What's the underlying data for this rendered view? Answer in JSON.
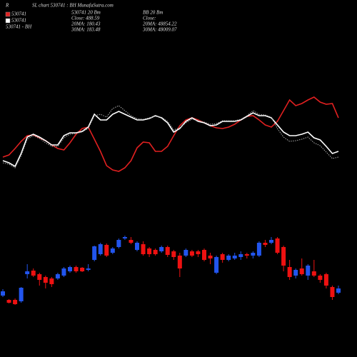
{
  "chart_data": {
    "type": "candlestick",
    "corner": "R",
    "title": "SL chart 530741 : BH MunafaSutra.com",
    "legend": [
      {
        "label": "530741",
        "color": "#e02020"
      },
      {
        "label": "530741",
        "color": "#ffffff"
      },
      {
        "label": "530741 - BH"
      }
    ],
    "info_left": [
      "530741 20 Bm",
      "Close: 488.59",
      "20MA: 180.43",
      "30MA: 183.48"
    ],
    "info_right": [
      "BB 20 Bm",
      "Close:",
      "20MA: 48854.22",
      "30MA: 48009.07"
    ],
    "up_color": "#2255ee",
    "down_color": "#ee1111",
    "ylim": [
      0,
      500
    ],
    "candles": [
      [
        86,
        95,
        84,
        92
      ],
      [
        80,
        81,
        75,
        76
      ],
      [
        80,
        82,
        73,
        74
      ],
      [
        78,
        98,
        76,
        97
      ],
      [
        116,
        130,
        110,
        120
      ],
      [
        121,
        124,
        112,
        114
      ],
      [
        116,
        118,
        100,
        108
      ],
      [
        112,
        114,
        96,
        104
      ],
      [
        110,
        112,
        98,
        102
      ],
      [
        110,
        118,
        108,
        116
      ],
      [
        114,
        126,
        112,
        124
      ],
      [
        120,
        128,
        118,
        126
      ],
      [
        126,
        128,
        118,
        120
      ],
      [
        125,
        126,
        119,
        120
      ],
      [
        122,
        130,
        120,
        124
      ],
      [
        136,
        156,
        134,
        155
      ],
      [
        144,
        160,
        142,
        158
      ],
      [
        157,
        159,
        140,
        142
      ],
      [
        146,
        154,
        144,
        152
      ],
      [
        154,
        166,
        152,
        164
      ],
      [
        166,
        170,
        164,
        168
      ],
      [
        164,
        168,
        158,
        160
      ],
      [
        150,
        162,
        148,
        160
      ],
      [
        158,
        162,
        142,
        144
      ],
      [
        152,
        154,
        140,
        144
      ],
      [
        150,
        152,
        142,
        144
      ],
      [
        148,
        156,
        146,
        154
      ],
      [
        154,
        156,
        140,
        143
      ],
      [
        148,
        150,
        136,
        140
      ],
      [
        142,
        146,
        112,
        124
      ],
      [
        142,
        152,
        140,
        150
      ],
      [
        148,
        150,
        140,
        142
      ],
      [
        148,
        150,
        140,
        144
      ],
      [
        150,
        152,
        134,
        136
      ],
      [
        142,
        146,
        130,
        138
      ],
      [
        118,
        142,
        116,
        140
      ],
      [
        144,
        146,
        132,
        136
      ],
      [
        136,
        144,
        134,
        142
      ],
      [
        138,
        146,
        136,
        142
      ],
      [
        140,
        148,
        136,
        144
      ],
      [
        144,
        146,
        138,
        142
      ],
      [
        142,
        148,
        138,
        146
      ],
      [
        142,
        162,
        140,
        160
      ],
      [
        160,
        164,
        154,
        157
      ],
      [
        160,
        168,
        158,
        164
      ],
      [
        166,
        168,
        144,
        146
      ],
      [
        154,
        156,
        120,
        128
      ],
      [
        126,
        136,
        108,
        112
      ],
      [
        114,
        124,
        110,
        122
      ],
      [
        124,
        138,
        114,
        116
      ],
      [
        114,
        130,
        108,
        128
      ],
      [
        120,
        136,
        112,
        114
      ],
      [
        114,
        116,
        104,
        108
      ],
      [
        116,
        118,
        96,
        100
      ],
      [
        98,
        100,
        80,
        84
      ],
      [
        90,
        100,
        88,
        96
      ]
    ],
    "lines": [
      {
        "color": "#e02020",
        "values": [
          280,
          283,
          292,
          302,
          310,
          311,
          307,
          303,
          297,
          292,
          290,
          300,
          312,
          320,
          322,
          305,
          288,
          268,
          262,
          260,
          265,
          275,
          293,
          301,
          300,
          288,
          288,
          295,
          310,
          324,
          332,
          335,
          332,
          328,
          324,
          321,
          320,
          322,
          326,
          332,
          337,
          338,
          332,
          325,
          322,
          330,
          345,
          360,
          352,
          355,
          360,
          364,
          357,
          354,
          355,
          335
        ]
      },
      {
        "color": "#ffffff",
        "values": [
          275,
          272,
          267,
          285,
          308,
          312,
          308,
          303,
          297,
          297,
          310,
          314,
          314,
          316,
          322,
          340,
          332,
          332,
          340,
          344,
          340,
          336,
          332,
          332,
          334,
          338,
          335,
          328,
          315,
          320,
          330,
          335,
          330,
          328,
          324,
          325,
          330,
          330,
          330,
          332,
          337,
          342,
          338,
          338,
          335,
          325,
          315,
          310,
          310,
          312,
          315,
          307,
          304,
          295,
          285,
          288
        ]
      },
      {
        "color": "#aaaaaa",
        "dash": true,
        "values": [
          272,
          270,
          265,
          282,
          305,
          310,
          306,
          300,
          295,
          295,
          307,
          312,
          313,
          315,
          320,
          338,
          340,
          336,
          348,
          352,
          345,
          338,
          334,
          333,
          335,
          337,
          336,
          330,
          318,
          321,
          328,
          333,
          331,
          329,
          326,
          327,
          331,
          331,
          331,
          333,
          338,
          345,
          340,
          339,
          336,
          320,
          308,
          302,
          303,
          305,
          308,
          300,
          296,
          287,
          278,
          280
        ]
      }
    ]
  }
}
